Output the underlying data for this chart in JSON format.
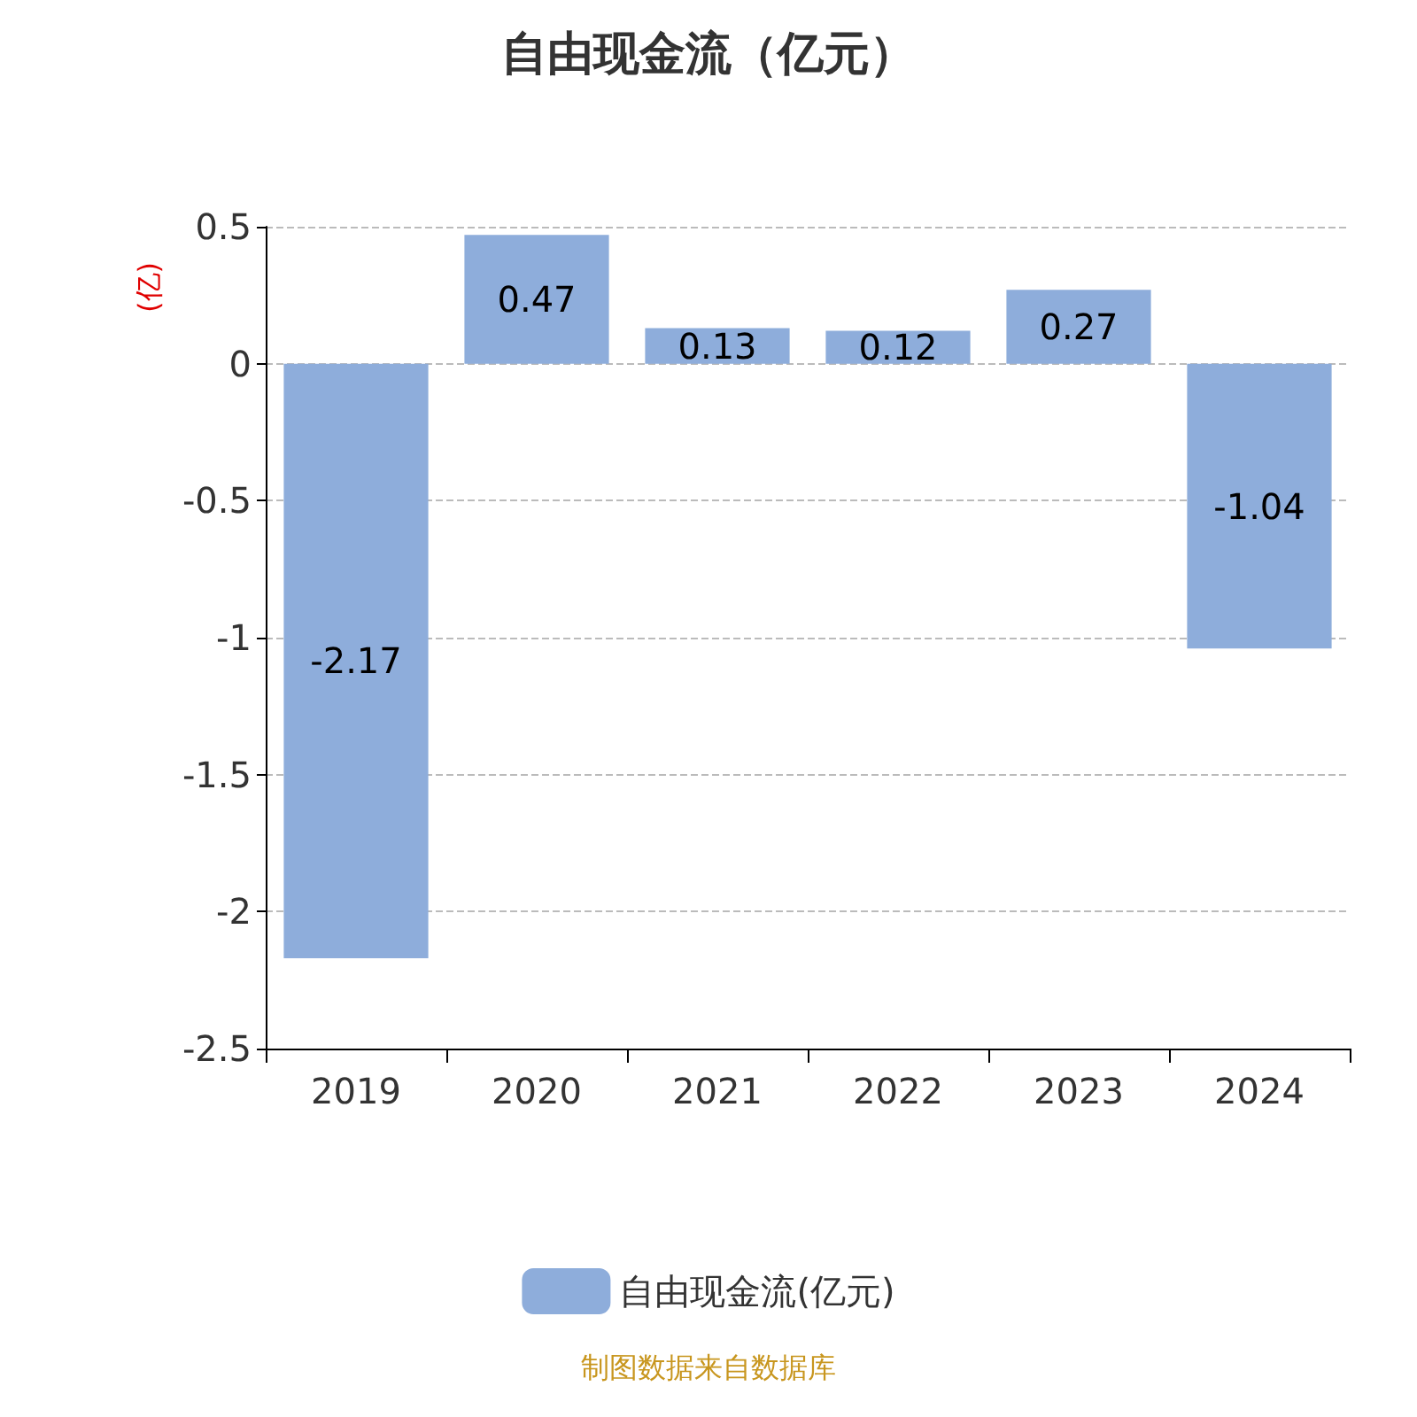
{
  "chart_data": {
    "type": "bar",
    "title": "自由现金流（亿元）",
    "ylabel": "(亿)",
    "categories": [
      "2019",
      "2020",
      "2021",
      "2022",
      "2023",
      "2024"
    ],
    "series": [
      {
        "name": "自由现金流(亿元)",
        "color": "#8eaddb",
        "values": [
          -2.17,
          0.47,
          0.13,
          0.12,
          0.27,
          -1.04
        ]
      }
    ],
    "ylim": [
      -2.5,
      0.5
    ],
    "yticks": [
      -2.5,
      -2,
      -1.5,
      -1,
      -0.5,
      0,
      0.5
    ],
    "grid": "y",
    "legend": "bottom",
    "data_labels": true,
    "annotations": [
      "制图数据来自数据库"
    ]
  }
}
